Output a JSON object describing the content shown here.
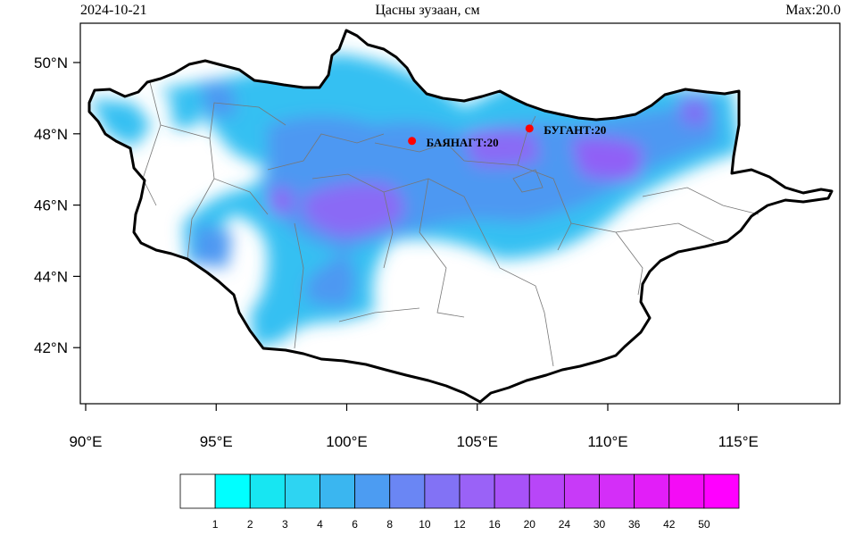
{
  "header": {
    "date": "2024-10-21",
    "title": "Цасны зузаан, см",
    "max_label": "Max:20.0"
  },
  "axes": {
    "x_ticks": [
      "90°E",
      "95°E",
      "100°E",
      "105°E",
      "110°E",
      "115°E"
    ],
    "y_ticks": [
      "50°N",
      "48°N",
      "46°N",
      "44°N",
      "42°N"
    ]
  },
  "stations": [
    {
      "label": "БАЯНАГТ:20",
      "lon": 102.5,
      "lat": 47.8
    },
    {
      "label": "БУГАНТ:20",
      "lon": 107.0,
      "lat": 48.15
    }
  ],
  "colorbar": {
    "labels": [
      "1",
      "2",
      "3",
      "4",
      "6",
      "8",
      "10",
      "12",
      "16",
      "20",
      "24",
      "30",
      "36",
      "42",
      "50"
    ],
    "colors": [
      "#ffffff",
      "#00ffff",
      "#17e6f2",
      "#2ed4f2",
      "#3ab6f0",
      "#4c9cf2",
      "#6a86f4",
      "#8272f5",
      "#9a62f7",
      "#a852f8",
      "#b846f8",
      "#c83af8",
      "#d42ef8",
      "#e21ef8",
      "#f40cf6",
      "#ff00ff"
    ]
  },
  "colors": {
    "border": "#000000",
    "station": "#ff0000"
  }
}
